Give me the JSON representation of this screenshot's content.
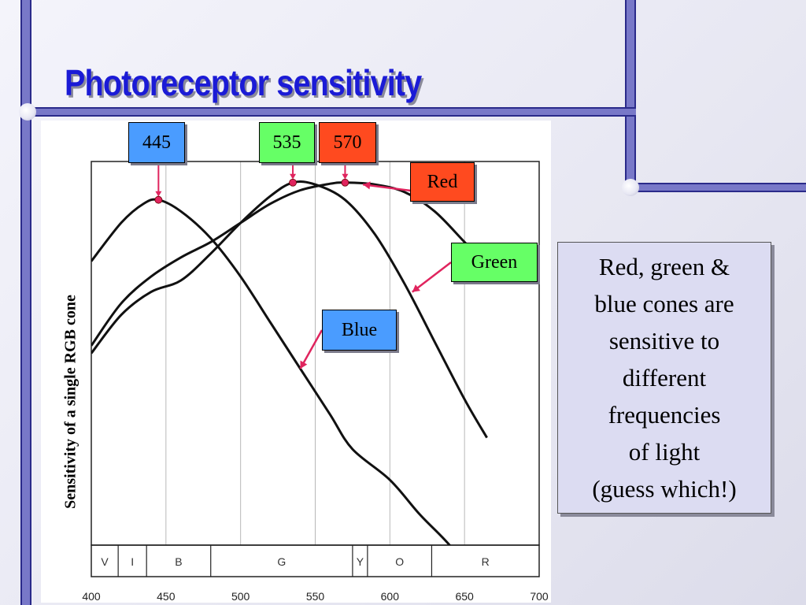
{
  "slide": {
    "title": "Photoreceptor sensitivity",
    "note": "Red, green &\nblue cones are\nsensitive to\ndifferent\nfrequencies\nof light\n(guess which!)"
  },
  "colors": {
    "frame": "#7878c8",
    "title": "#1b1bd6",
    "blue_tag": "#4a9cff",
    "green_tag": "#66ff66",
    "red_tag": "#ff4a1f",
    "pointer": "#e0245e",
    "note_bg": "#dcdcf2"
  },
  "chart_data": {
    "type": "line",
    "title": "",
    "xlabel": "",
    "ylabel": "Sensitivity of a single RGB cone",
    "xlim": [
      400,
      700
    ],
    "ylim": [
      0,
      1
    ],
    "grid": true,
    "x_ticks": [
      400,
      450,
      500,
      550,
      600,
      650,
      700
    ],
    "x_tick_labels": [
      "400",
      "450",
      "500",
      "550",
      "600",
      "650",
      "700"
    ],
    "color_bands": [
      {
        "label": "V",
        "start": 400,
        "end": 418
      },
      {
        "label": "I",
        "start": 418,
        "end": 437
      },
      {
        "label": "B",
        "start": 437,
        "end": 480
      },
      {
        "label": "G",
        "start": 480,
        "end": 575
      },
      {
        "label": "Y",
        "start": 575,
        "end": 585
      },
      {
        "label": "O",
        "start": 585,
        "end": 628
      },
      {
        "label": "R",
        "start": 628,
        "end": 700
      }
    ],
    "series": [
      {
        "name": "Blue",
        "x": [
          400,
          420,
          435,
          445,
          460,
          480,
          500,
          520,
          540,
          560,
          575,
          600,
          620,
          640,
          660
        ],
        "y": [
          0.74,
          0.84,
          0.89,
          0.9,
          0.87,
          0.8,
          0.7,
          0.58,
          0.46,
          0.34,
          0.25,
          0.17,
          0.08,
          0.0,
          -0.1
        ]
      },
      {
        "name": "Green",
        "x": [
          400,
          420,
          440,
          460,
          480,
          500,
          520,
          535,
          550,
          570,
          590,
          610,
          630,
          650,
          665
        ],
        "y": [
          0.5,
          0.6,
          0.66,
          0.69,
          0.76,
          0.84,
          0.91,
          0.945,
          0.94,
          0.9,
          0.81,
          0.68,
          0.53,
          0.38,
          0.28
        ]
      },
      {
        "name": "Red",
        "x": [
          400,
          420,
          440,
          460,
          480,
          500,
          520,
          540,
          560,
          570,
          590,
          610,
          630,
          650,
          665
        ],
        "y": [
          0.52,
          0.63,
          0.7,
          0.75,
          0.79,
          0.84,
          0.89,
          0.925,
          0.942,
          0.945,
          0.94,
          0.92,
          0.87,
          0.79,
          0.73
        ]
      }
    ],
    "peaks": [
      {
        "label": "445",
        "x": 445,
        "y": 0.9,
        "series": "Blue"
      },
      {
        "label": "535",
        "x": 535,
        "y": 0.945,
        "series": "Green"
      },
      {
        "label": "570",
        "x": 570,
        "y": 0.945,
        "series": "Red"
      }
    ],
    "series_labels": [
      {
        "series": "Red",
        "text": "Red",
        "point_x": 582,
        "point_y": 0.94
      },
      {
        "series": "Green",
        "text": "Green",
        "point_x": 615,
        "point_y": 0.66
      },
      {
        "series": "Blue",
        "text": "Blue",
        "point_x": 540,
        "point_y": 0.46
      }
    ]
  }
}
